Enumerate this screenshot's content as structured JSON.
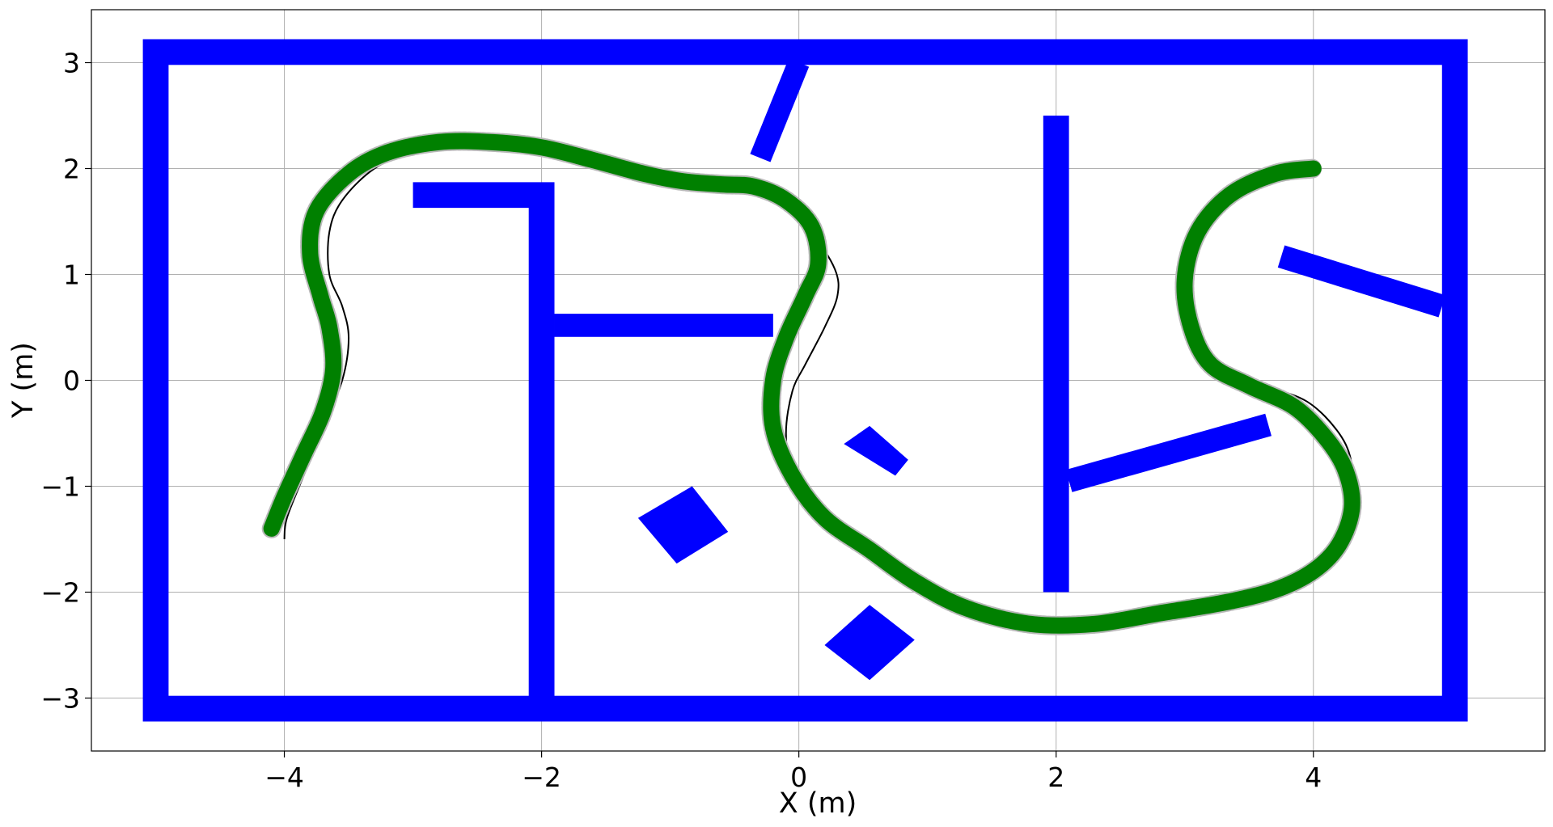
{
  "chart_data": {
    "type": "line",
    "title": "",
    "xlabel": "X (m)",
    "ylabel": "Y (m)",
    "xlim": [
      -5.5,
      5.8
    ],
    "ylim": [
      -3.5,
      3.5
    ],
    "xticks": [
      -4,
      -2,
      0,
      2,
      4
    ],
    "yticks": [
      -3,
      -2,
      -1,
      0,
      1,
      2,
      3
    ],
    "xtick_labels": [
      "−4",
      "−2",
      "0",
      "2",
      "4"
    ],
    "ytick_labels": [
      "−3",
      "−2",
      "−1",
      "0",
      "1",
      "2",
      "3"
    ],
    "grid": true,
    "legend": "none",
    "colors": {
      "obstacle": "#0000ff",
      "trajectory": "#008000",
      "reference": "#000000",
      "grid": "#b0b0b0"
    },
    "obstacles": [
      {
        "name": "outer-wall",
        "kind": "frame",
        "x": [
          -5.0,
          5.1
        ],
        "y": [
          -3.1,
          3.1
        ],
        "thickness": 0.2
      },
      {
        "name": "wall-diagonal-top",
        "kind": "segment",
        "points": [
          [
            0.0,
            3.0
          ],
          [
            -0.3,
            2.1
          ]
        ],
        "width": 0.17
      },
      {
        "name": "wall-l-top",
        "kind": "segment",
        "points": [
          [
            -3.0,
            1.75
          ],
          [
            -1.9,
            1.75
          ]
        ],
        "width": 0.2
      },
      {
        "name": "wall-vertical-left",
        "kind": "segment",
        "points": [
          [
            -2.0,
            1.85
          ],
          [
            -2.0,
            -3.0
          ]
        ],
        "width": 0.2
      },
      {
        "name": "wall-horizontal-mid",
        "kind": "segment",
        "points": [
          [
            -1.9,
            0.52
          ],
          [
            -0.2,
            0.52
          ]
        ],
        "width": 0.18
      },
      {
        "name": "wall-vertical-right",
        "kind": "segment",
        "points": [
          [
            2.0,
            2.5
          ],
          [
            2.0,
            -2.0
          ]
        ],
        "width": 0.2
      },
      {
        "name": "wall-diagonal-mid-right",
        "kind": "segment",
        "points": [
          [
            2.1,
            -0.95
          ],
          [
            3.65,
            -0.42
          ]
        ],
        "width": 0.18
      },
      {
        "name": "wall-diagonal-upper-right",
        "kind": "segment",
        "points": [
          [
            3.75,
            1.17
          ],
          [
            5.0,
            0.7
          ]
        ],
        "width": 0.18
      },
      {
        "name": "block-small",
        "kind": "polygon",
        "points": [
          [
            0.35,
            -0.6
          ],
          [
            0.55,
            -0.43
          ],
          [
            0.85,
            -0.75
          ],
          [
            0.75,
            -0.9
          ]
        ]
      },
      {
        "name": "block-diamond-left",
        "kind": "polygon",
        "points": [
          [
            -1.25,
            -1.3
          ],
          [
            -0.83,
            -1.0
          ],
          [
            -0.55,
            -1.43
          ],
          [
            -0.95,
            -1.73
          ]
        ]
      },
      {
        "name": "block-diamond-bottom",
        "kind": "polygon",
        "points": [
          [
            0.2,
            -2.5
          ],
          [
            0.55,
            -2.12
          ],
          [
            0.9,
            -2.45
          ],
          [
            0.55,
            -2.83
          ]
        ]
      }
    ],
    "series": [
      {
        "type": "reference",
        "x": [
          -4.0,
          -3.98,
          -3.85,
          -3.7,
          -3.55,
          -3.5,
          -3.55,
          -3.65,
          -3.65,
          -3.55,
          -3.3,
          -3.0,
          -2.7,
          -2.3,
          -1.9,
          -1.5,
          -1.2,
          -0.9,
          -0.6,
          -0.35,
          -0.1,
          0.1,
          0.28,
          0.3,
          0.2,
          0.05,
          -0.05,
          -0.1,
          -0.05,
          0.1,
          0.35,
          0.7,
          1.1,
          1.4,
          1.8,
          2.3,
          2.8,
          3.3,
          3.7,
          4.0,
          4.2,
          4.3,
          4.3,
          4.2,
          3.95,
          3.6,
          3.3,
          3.1,
          3.0,
          3.05,
          3.25,
          3.6,
          4.0
        ],
        "y": [
          -1.5,
          -1.3,
          -0.9,
          -0.45,
          0.0,
          0.4,
          0.7,
          1.0,
          1.4,
          1.7,
          2.0,
          2.15,
          2.2,
          2.18,
          2.12,
          2.02,
          1.9,
          1.83,
          1.83,
          1.8,
          1.65,
          1.4,
          1.05,
          0.8,
          0.5,
          0.15,
          -0.1,
          -0.5,
          -0.9,
          -1.25,
          -1.5,
          -1.75,
          -2.0,
          -2.15,
          -2.25,
          -2.22,
          -2.15,
          -2.05,
          -1.95,
          -1.8,
          -1.55,
          -1.2,
          -0.8,
          -0.5,
          -0.2,
          -0.05,
          0.05,
          0.3,
          0.75,
          1.25,
          1.7,
          1.95,
          2.0
        ]
      },
      {
        "type": "trajectory",
        "x": [
          -4.1,
          -4.0,
          -3.85,
          -3.7,
          -3.62,
          -3.65,
          -3.72,
          -3.8,
          -3.75,
          -3.5,
          -3.2,
          -2.8,
          -2.4,
          -2.0,
          -1.6,
          -1.2,
          -0.9,
          -0.6,
          -0.35,
          -0.1,
          0.1,
          0.15,
          0.05,
          -0.1,
          -0.2,
          -0.2,
          -0.05,
          0.2,
          0.55,
          0.9,
          1.3,
          1.8,
          2.3,
          2.8,
          3.3,
          3.7,
          4.0,
          4.2,
          4.3,
          4.25,
          4.1,
          3.85,
          3.5,
          3.2,
          3.05,
          3.0,
          3.1,
          3.35,
          3.7,
          4.0
        ],
        "y": [
          -1.4,
          -1.1,
          -0.7,
          -0.3,
          0.1,
          0.5,
          0.8,
          1.2,
          1.6,
          1.95,
          2.15,
          2.25,
          2.25,
          2.2,
          2.08,
          1.95,
          1.88,
          1.85,
          1.83,
          1.7,
          1.45,
          1.1,
          0.8,
          0.4,
          0.0,
          -0.45,
          -0.9,
          -1.3,
          -1.6,
          -1.9,
          -2.15,
          -2.3,
          -2.3,
          -2.2,
          -2.1,
          -1.98,
          -1.8,
          -1.55,
          -1.2,
          -0.85,
          -0.55,
          -0.25,
          -0.05,
          0.15,
          0.5,
          0.95,
          1.4,
          1.75,
          1.95,
          2.0
        ]
      }
    ]
  }
}
